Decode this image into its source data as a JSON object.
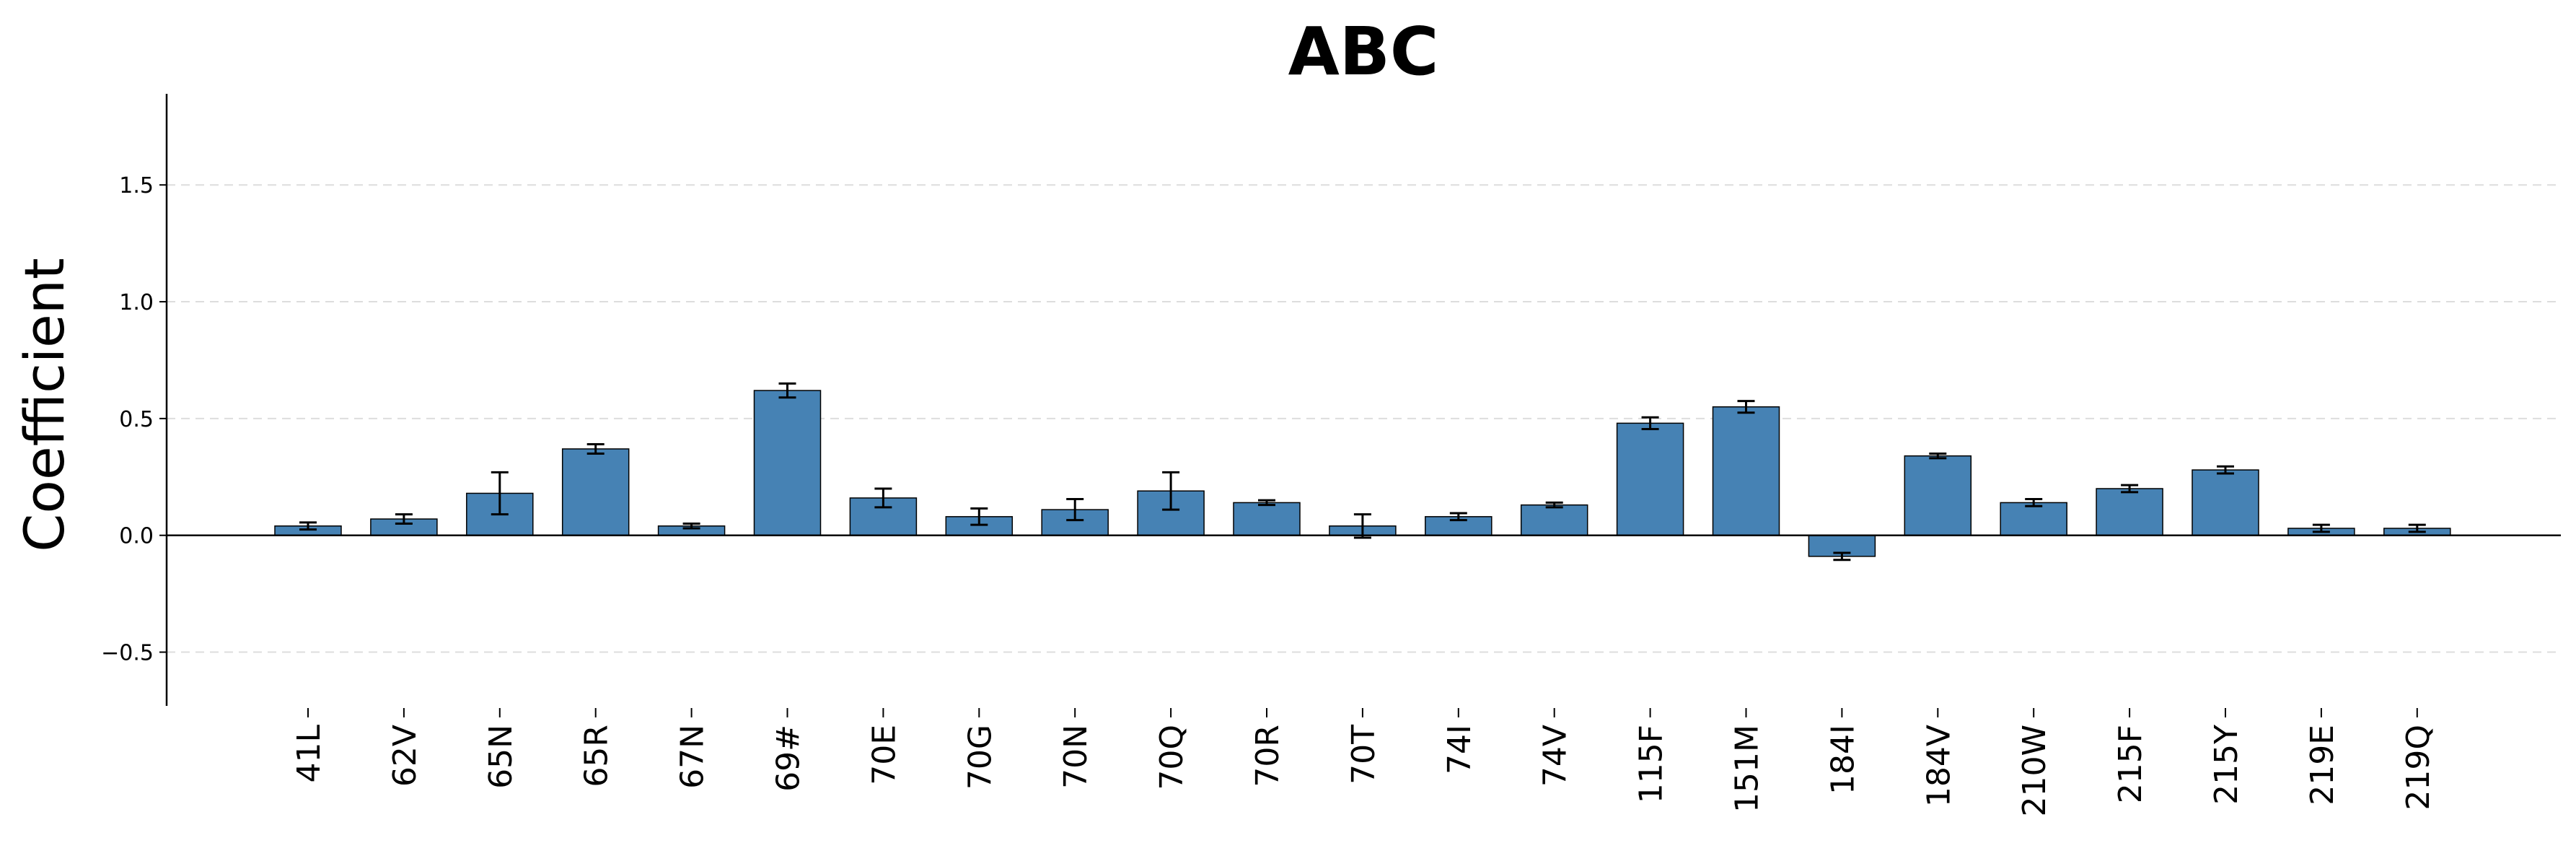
{
  "chart_data": {
    "type": "bar",
    "title": "ABC",
    "xlabel": "",
    "ylabel": "Coefficient",
    "ylim": [
      -0.73,
      1.89
    ],
    "yticks": [
      -0.5,
      0.0,
      0.5,
      1.0,
      1.5
    ],
    "ytick_labels": [
      "−0.5",
      "0.0",
      "0.5",
      "1.0",
      "1.5"
    ],
    "grid": true,
    "bar_color": "#4682b4",
    "categories": [
      "41L",
      "62V",
      "65N",
      "65R",
      "67N",
      "69#",
      "70E",
      "70G",
      "70N",
      "70Q",
      "70R",
      "70T",
      "74I",
      "74V",
      "115F",
      "151M",
      "184I",
      "184V",
      "210W",
      "215F",
      "215Y",
      "219E",
      "219Q"
    ],
    "values": [
      0.04,
      0.07,
      0.18,
      0.37,
      0.04,
      0.62,
      0.16,
      0.08,
      0.11,
      0.19,
      0.14,
      0.04,
      0.08,
      0.13,
      0.48,
      0.55,
      -0.09,
      0.34,
      0.14,
      0.2,
      0.28,
      0.03,
      0.03
    ],
    "errors": [
      0.015,
      0.02,
      0.09,
      0.02,
      0.01,
      0.03,
      0.04,
      0.035,
      0.045,
      0.08,
      0.01,
      0.05,
      0.015,
      0.01,
      0.025,
      0.025,
      0.015,
      0.01,
      0.015,
      0.015,
      0.015,
      0.015,
      0.015
    ]
  }
}
